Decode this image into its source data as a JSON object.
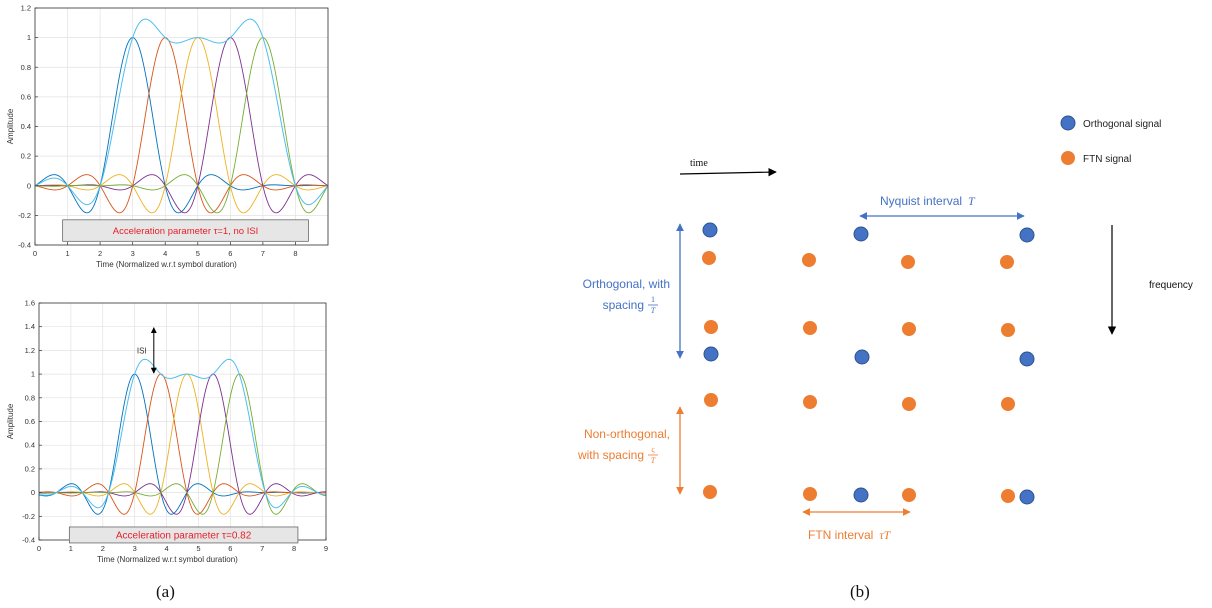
{
  "panel_labels": [
    "(a)",
    "(b)"
  ],
  "colors": {
    "blue": "#4472c4",
    "orange": "#ed7d31",
    "red_text": "#e8202a",
    "plot_series": [
      "#0072bd",
      "#d95319",
      "#edb120",
      "#7e2f8e",
      "#77ac30",
      "#4dbeee"
    ]
  },
  "chart_data": [
    {
      "type": "line",
      "xlabel": "Time (Normalized w.r.t symbol duration)",
      "ylabel": "Amplitude",
      "xlim": [
        0,
        9
      ],
      "ylim": [
        -0.4,
        1.2
      ],
      "xticks": [
        0,
        1,
        2,
        3,
        4,
        5,
        6,
        7,
        8
      ],
      "yticks": [
        -0.4,
        -0.2,
        0,
        0.2,
        0.4,
        0.6,
        0.8,
        1,
        1.2
      ],
      "ytick_labels": [
        "-0.4",
        "-0.2",
        "0",
        "0.2",
        "0.4",
        "0.6",
        "0.8",
        "1",
        "1.2"
      ],
      "grid": true,
      "pulse_peaks_x": [
        3,
        4,
        5,
        6,
        7
      ],
      "pulse_spacing": 1,
      "sum_curve": true,
      "annotation": "Acceleration parameter τ=1, no ISI"
    },
    {
      "type": "line",
      "xlabel": "Time (Normalized w.r.t symbol duration)",
      "ylabel": "Amplitude",
      "xlim": [
        0,
        9
      ],
      "ylim": [
        -0.4,
        1.6
      ],
      "xticks": [
        0,
        1,
        2,
        3,
        4,
        5,
        6,
        7,
        8,
        9
      ],
      "yticks": [
        -0.4,
        -0.2,
        0,
        0.2,
        0.4,
        0.6,
        0.8,
        1,
        1.2,
        1.4,
        1.6
      ],
      "ytick_labels": [
        "-0.4",
        "-0.2",
        "0",
        "0.2",
        "0.4",
        "0.6",
        "0.8",
        "1",
        "1.2",
        "1.4",
        "1.6"
      ],
      "grid": true,
      "pulse_peaks_x": [
        3,
        3.82,
        4.64,
        5.46,
        6.28
      ],
      "pulse_spacing": 0.82,
      "sum_curve": true,
      "annotation": "Acceleration parameter τ=0.82",
      "isi_label": "ISI"
    }
  ],
  "diagram": {
    "legend": {
      "orthogonal": "Orthogonal signal",
      "ftn": "FTN signal"
    },
    "time_label": "time",
    "frequency_label": "frequency",
    "nyquist_label": "Nyquist interval",
    "nyquist_symbol": "T",
    "orthogonal_label_line1": "Orthogonal, with",
    "orthogonal_label_line2": "spacing",
    "frac_one_num": "1",
    "frac_one_den": "T",
    "nonorth_label_line1": "Non-orthogonal,",
    "nonorth_label_line2": "with spacing",
    "frac_zeta_num": "ς",
    "frac_zeta_den": "T",
    "ftn_interval_label": "FTN interval",
    "ftn_interval_symbol": "τT"
  }
}
